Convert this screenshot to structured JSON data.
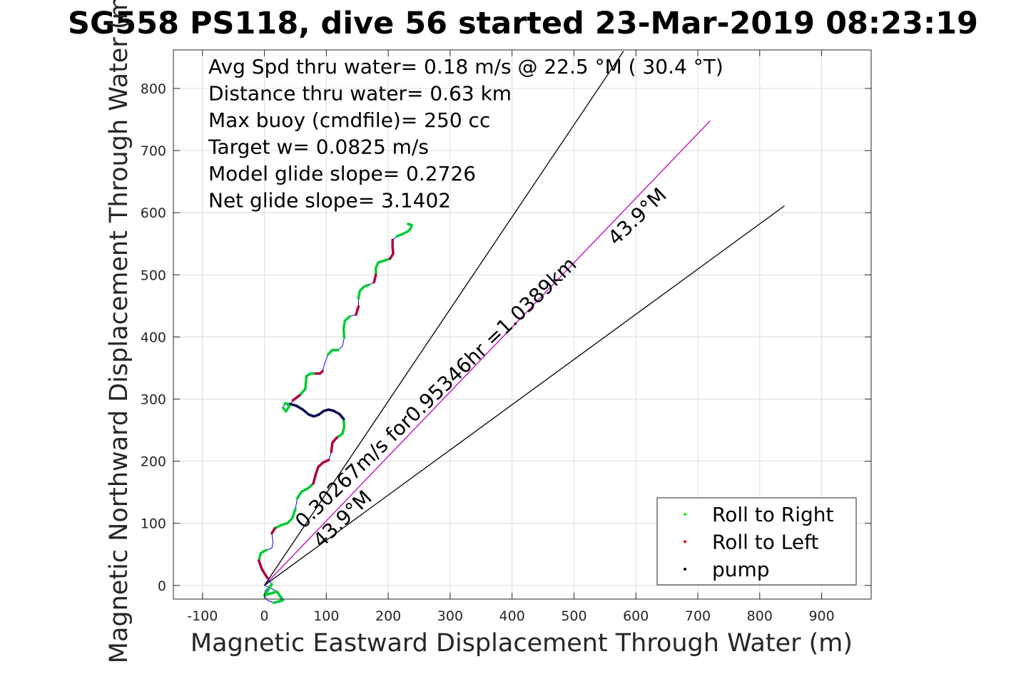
{
  "chart_data": {
    "type": "line",
    "title": "SG558 PS118, dive 56 started 23-Mar-2019 08:23:19",
    "xlabel": "Magnetic Eastward Displacement Through Water (m)",
    "ylabel": "Magnetic Northward Displacement Through Water (m)",
    "xlim": [
      -147,
      980
    ],
    "ylim": [
      -22,
      862
    ],
    "xticks": [
      -100,
      0,
      100,
      200,
      300,
      400,
      500,
      600,
      700,
      800,
      900
    ],
    "yticks": [
      0,
      100,
      200,
      300,
      400,
      500,
      600,
      700,
      800
    ],
    "grid": true,
    "stats": [
      "Avg Spd thru water=  0.18 m/s @  22.5 °M ( 30.4 °T)",
      "Distance thru water=  0.63 km",
      "Max buoy (cmdfile)= 250 cc",
      "Target w= 0.0825 m/s",
      "Model glide slope= 0.2726",
      "Net glide slope= 3.1402"
    ],
    "annotations": [
      {
        "text": "0.30267m/s for0.95346hr =1.0389km",
        "x": 63,
        "y": 90,
        "angle_deg": 43.9
      },
      {
        "text": "43.9°M",
        "x": 568,
        "y": 546,
        "angle_deg": 43.9
      },
      {
        "text": "43.9°M",
        "x": 92,
        "y": 59,
        "angle_deg": 43.9
      }
    ],
    "lines": [
      {
        "name": "heading-mean",
        "color": "#c000c0",
        "points": [
          [
            0,
            0
          ],
          [
            720,
            748
          ]
        ]
      },
      {
        "name": "heading-upper",
        "color": "#000000",
        "points": [
          [
            0,
            0
          ],
          [
            580,
            860
          ]
        ]
      },
      {
        "name": "heading-lower",
        "color": "#000000",
        "points": [
          [
            0,
            0
          ],
          [
            840,
            611
          ]
        ]
      }
    ],
    "track": [
      [
        0,
        0
      ],
      [
        10,
        -4
      ],
      [
        20,
        -10
      ],
      [
        28,
        -18
      ],
      [
        30,
        -24
      ],
      [
        25,
        -27
      ],
      [
        15,
        -28
      ],
      [
        5,
        -24
      ],
      [
        0,
        -16
      ],
      [
        2,
        -8
      ],
      [
        8,
        -2
      ],
      [
        12,
        2
      ],
      [
        5,
        12
      ],
      [
        -4,
        26
      ],
      [
        -9,
        40
      ],
      [
        -6,
        52
      ],
      [
        3,
        57
      ],
      [
        12,
        60
      ],
      [
        14,
        70
      ],
      [
        12,
        84
      ],
      [
        17,
        92
      ],
      [
        27,
        97
      ],
      [
        37,
        100
      ],
      [
        45,
        108
      ],
      [
        50,
        123
      ],
      [
        53,
        140
      ],
      [
        60,
        151
      ],
      [
        70,
        156
      ],
      [
        79,
        164
      ],
      [
        83,
        179
      ],
      [
        87,
        191
      ],
      [
        95,
        198
      ],
      [
        104,
        202
      ],
      [
        108,
        215
      ],
      [
        110,
        230
      ],
      [
        117,
        238
      ],
      [
        126,
        244
      ],
      [
        129,
        256
      ],
      [
        128,
        268
      ],
      [
        121,
        276
      ],
      [
        112,
        281
      ],
      [
        104,
        283
      ],
      [
        96,
        281
      ],
      [
        88,
        275
      ],
      [
        80,
        272
      ],
      [
        72,
        275
      ],
      [
        62,
        283
      ],
      [
        52,
        289
      ],
      [
        42,
        292
      ],
      [
        33,
        293
      ],
      [
        30,
        286
      ],
      [
        35,
        280
      ],
      [
        41,
        290
      ],
      [
        46,
        298
      ],
      [
        57,
        306
      ],
      [
        66,
        316
      ],
      [
        67,
        327
      ],
      [
        68,
        337
      ],
      [
        75,
        341
      ],
      [
        83,
        341
      ],
      [
        90,
        341
      ],
      [
        94,
        345
      ],
      [
        98,
        359
      ],
      [
        103,
        372
      ],
      [
        110,
        379
      ],
      [
        119,
        379
      ],
      [
        126,
        385
      ],
      [
        129,
        399
      ],
      [
        128,
        413
      ],
      [
        130,
        426
      ],
      [
        138,
        433
      ],
      [
        148,
        436
      ],
      [
        152,
        449
      ],
      [
        152,
        462
      ],
      [
        154,
        474
      ],
      [
        161,
        481
      ],
      [
        169,
        484
      ],
      [
        177,
        488
      ],
      [
        180,
        500
      ],
      [
        180,
        511
      ],
      [
        184,
        520
      ],
      [
        194,
        523
      ],
      [
        203,
        526
      ],
      [
        208,
        534
      ],
      [
        207,
        545
      ],
      [
        207,
        556
      ],
      [
        214,
        562
      ],
      [
        224,
        566
      ],
      [
        232,
        570
      ],
      [
        236,
        574
      ],
      [
        238,
        580
      ],
      [
        232,
        582
      ]
    ],
    "roll_right_segments": [
      [
        [
          15,
          -28
        ],
        [
          30,
          -24
        ],
        [
          20,
          -10
        ],
        [
          0,
          -16
        ],
        [
          12,
          2
        ]
      ],
      [
        [
          -9,
          40
        ],
        [
          -6,
          52
        ],
        [
          3,
          57
        ]
      ],
      [
        [
          17,
          92
        ],
        [
          27,
          97
        ],
        [
          37,
          100
        ],
        [
          45,
          108
        ],
        [
          50,
          123
        ]
      ],
      [
        [
          53,
          140
        ],
        [
          60,
          151
        ],
        [
          70,
          156
        ],
        [
          79,
          164
        ]
      ],
      [
        [
          117,
          238
        ],
        [
          126,
          244
        ],
        [
          129,
          256
        ],
        [
          128,
          268
        ]
      ],
      [
        [
          30,
          286
        ],
        [
          35,
          280
        ],
        [
          41,
          290
        ],
        [
          33,
          293
        ],
        [
          42,
          292
        ]
      ],
      [
        [
          57,
          306
        ],
        [
          66,
          316
        ],
        [
          67,
          327
        ],
        [
          68,
          337
        ],
        [
          75,
          341
        ],
        [
          83,
          341
        ]
      ],
      [
        [
          103,
          372
        ],
        [
          110,
          379
        ],
        [
          119,
          379
        ]
      ],
      [
        [
          129,
          399
        ],
        [
          128,
          413
        ],
        [
          130,
          426
        ],
        [
          138,
          433
        ]
      ],
      [
        [
          152,
          462
        ],
        [
          154,
          474
        ],
        [
          161,
          481
        ],
        [
          169,
          484
        ]
      ],
      [
        [
          180,
          500
        ],
        [
          180,
          511
        ],
        [
          184,
          520
        ],
        [
          194,
          523
        ],
        [
          203,
          526
        ]
      ],
      [
        [
          214,
          562
        ],
        [
          224,
          566
        ],
        [
          232,
          570
        ],
        [
          236,
          574
        ],
        [
          238,
          580
        ],
        [
          232,
          582
        ]
      ]
    ],
    "roll_left_segments": [
      [
        [
          5,
          12
        ],
        [
          -4,
          26
        ],
        [
          -9,
          40
        ]
      ],
      [
        [
          12,
          84
        ],
        [
          17,
          92
        ]
      ],
      [
        [
          79,
          164
        ],
        [
          83,
          179
        ],
        [
          87,
          191
        ],
        [
          95,
          198
        ],
        [
          104,
          202
        ]
      ],
      [
        [
          108,
          215
        ],
        [
          110,
          230
        ],
        [
          117,
          238
        ]
      ],
      [
        [
          46,
          298
        ],
        [
          57,
          306
        ]
      ],
      [
        [
          83,
          341
        ],
        [
          90,
          341
        ],
        [
          94,
          345
        ]
      ],
      [
        [
          148,
          436
        ],
        [
          152,
          449
        ]
      ],
      [
        [
          177,
          488
        ],
        [
          180,
          500
        ]
      ],
      [
        [
          203,
          526
        ],
        [
          208,
          534
        ],
        [
          207,
          545
        ],
        [
          207,
          556
        ]
      ]
    ],
    "pump_segments": [
      [
        [
          128,
          268
        ],
        [
          121,
          276
        ],
        [
          112,
          281
        ],
        [
          104,
          283
        ],
        [
          96,
          281
        ],
        [
          88,
          275
        ],
        [
          80,
          272
        ],
        [
          72,
          275
        ],
        [
          62,
          283
        ],
        [
          52,
          289
        ],
        [
          42,
          292
        ]
      ]
    ],
    "legend": {
      "placement": "bottom-right",
      "entries": [
        {
          "label": "Roll to Right",
          "color": "#00ff00"
        },
        {
          "label": "Roll to Left",
          "color": "#ff0000"
        },
        {
          "label": "pump",
          "color": "#000000"
        }
      ]
    },
    "colors": {
      "track": "#0000ff",
      "roll_right": "#00cc33",
      "roll_left": "#b0003a",
      "pump": "#000050"
    }
  }
}
